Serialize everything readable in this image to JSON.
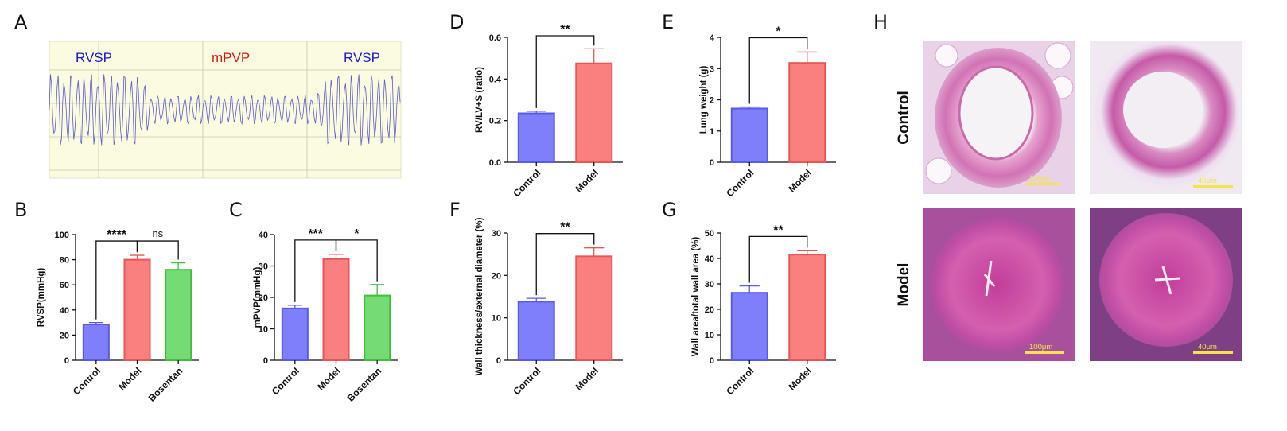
{
  "colors": {
    "control": "#7f7ffb",
    "control_edge": "#5a5ae6",
    "model": "#fa7f7f",
    "model_edge": "#e65858",
    "bosentan": "#75dc75",
    "bosentan_edge": "#3fbf3f"
  },
  "panel_letters": [
    "A",
    "B",
    "C",
    "D",
    "E",
    "F",
    "G",
    "H"
  ],
  "trace": {
    "labels": [
      {
        "text": "RVSP",
        "color": "#1a1acc"
      },
      {
        "text": "mPVP",
        "color": "#cc1a1a"
      },
      {
        "text": "RVSP",
        "color": "#1a1acc"
      }
    ]
  },
  "chart_data": [
    {
      "panel": "B",
      "type": "bar",
      "ylabel": "RVSP(mmHg)",
      "ylim": [
        0,
        100
      ],
      "yticks": [
        0,
        20,
        40,
        60,
        80,
        100
      ],
      "categories": [
        "Control",
        "Model",
        "Bosentan"
      ],
      "values": [
        28.5,
        80,
        72
      ],
      "errors": [
        1.5,
        3.5,
        5.5
      ],
      "comparisons": [
        {
          "from": 0,
          "to": 1,
          "label": "****"
        },
        {
          "from": 1,
          "to": 2,
          "label": "ns"
        }
      ]
    },
    {
      "panel": "C",
      "type": "bar",
      "ylabel": "mPVP(mmHg)",
      "ylim": [
        0,
        40
      ],
      "yticks": [
        0,
        10,
        20,
        30,
        40
      ],
      "categories": [
        "Control",
        "Model",
        "Bosentan"
      ],
      "values": [
        16.5,
        32.2,
        20.6
      ],
      "errors": [
        1.0,
        1.5,
        3.5
      ],
      "comparisons": [
        {
          "from": 0,
          "to": 1,
          "label": "***"
        },
        {
          "from": 1,
          "to": 2,
          "label": "*"
        }
      ]
    },
    {
      "panel": "D",
      "type": "bar",
      "ylabel": "RV/LV+S (ratio)",
      "ylim": [
        0,
        0.6
      ],
      "yticks": [
        "0.0",
        "0.2",
        "0.4",
        "0.6"
      ],
      "categories": [
        "Control",
        "Model"
      ],
      "values": [
        0.235,
        0.475
      ],
      "errors": [
        0.01,
        0.07
      ],
      "comparisons": [
        {
          "from": 0,
          "to": 1,
          "label": "**"
        }
      ]
    },
    {
      "panel": "E",
      "type": "bar",
      "ylabel": "Lung weight (g)",
      "ylim": [
        0,
        4
      ],
      "yticks": [
        0,
        1,
        2,
        3,
        4
      ],
      "categories": [
        "Control",
        "Model"
      ],
      "values": [
        1.72,
        3.18
      ],
      "errors": [
        0.05,
        0.35
      ],
      "comparisons": [
        {
          "from": 0,
          "to": 1,
          "label": "*"
        }
      ]
    },
    {
      "panel": "F",
      "type": "bar",
      "ylabel": "Wall thickness/external diameter (%)",
      "ylim": [
        0,
        30
      ],
      "yticks": [
        0,
        10,
        20,
        30
      ],
      "categories": [
        "Control",
        "Model"
      ],
      "values": [
        13.8,
        24.5
      ],
      "errors": [
        0.8,
        2.0
      ],
      "comparisons": [
        {
          "from": 0,
          "to": 1,
          "label": "**"
        }
      ]
    },
    {
      "panel": "G",
      "type": "bar",
      "ylabel": "Wall area/total wall area (%)",
      "ylim": [
        0,
        50
      ],
      "yticks": [
        0,
        10,
        20,
        30,
        40,
        50
      ],
      "categories": [
        "Control",
        "Model"
      ],
      "values": [
        26.5,
        41.5
      ],
      "errors": [
        2.7,
        1.5
      ],
      "comparisons": [
        {
          "from": 0,
          "to": 1,
          "label": "**"
        }
      ]
    }
  ],
  "histology": {
    "row_labels": [
      "Control",
      "Model"
    ],
    "scale_bars": [
      "100μm",
      "40μm",
      "100μm",
      "40μm"
    ]
  }
}
